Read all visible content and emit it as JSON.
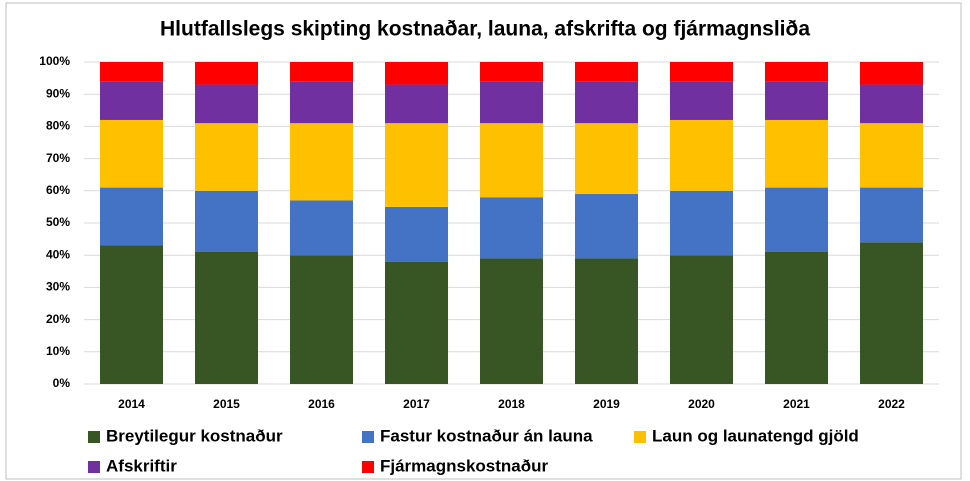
{
  "chart_data": {
    "type": "stacked_bar",
    "title": "Hlutfallslegs skipting kostnaðar, launa, afskrifta og fjármagnsliða",
    "categories": [
      "2014",
      "2015",
      "2016",
      "2017",
      "2018",
      "2019",
      "2020",
      "2021",
      "2022"
    ],
    "series": [
      {
        "name": "Breytilegur kostnaður",
        "color": "#375623",
        "values": [
          43,
          41,
          40,
          38,
          39,
          39,
          40,
          41,
          44
        ]
      },
      {
        "name": "Fastur kostnaður án launa",
        "color": "#4472c4",
        "values": [
          18,
          19,
          17,
          17,
          19,
          20,
          20,
          20,
          17
        ]
      },
      {
        "name": "Laun og launatengd gjöld",
        "color": "#ffc000",
        "values": [
          21,
          21,
          24,
          26,
          23,
          22,
          22,
          21,
          20
        ]
      },
      {
        "name": "Afskriftir",
        "color": "#7030a0",
        "values": [
          12,
          12,
          13,
          12,
          13,
          13,
          12,
          12,
          12
        ]
      },
      {
        "name": "Fjármagnskostnaður",
        "color": "#ff0000",
        "values": [
          6,
          7,
          6,
          7,
          6,
          6,
          6,
          6,
          7
        ]
      }
    ],
    "ylim": [
      0,
      100
    ],
    "yticks": [
      {
        "value": 0,
        "label": "0%"
      },
      {
        "value": 10,
        "label": "10%"
      },
      {
        "value": 20,
        "label": "20%"
      },
      {
        "value": 30,
        "label": "30%"
      },
      {
        "value": 40,
        "label": "40%"
      },
      {
        "value": 50,
        "label": "50%"
      },
      {
        "value": 60,
        "label": "60%"
      },
      {
        "value": 70,
        "label": "70%"
      },
      {
        "value": 80,
        "label": "80%"
      },
      {
        "value": 90,
        "label": "90%"
      },
      {
        "value": 100,
        "label": "100%"
      }
    ],
    "grid": true
  }
}
